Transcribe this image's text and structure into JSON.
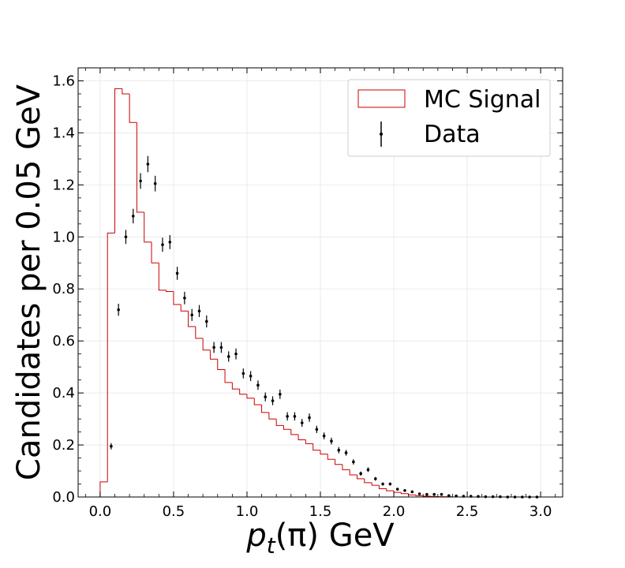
{
  "chart_data": {
    "type": "histogram",
    "title": "",
    "xlabel_main": "p",
    "xlabel_sub": "t",
    "xlabel_rest": "(π) GeV",
    "ylabel": "Candidates per 0.05 GeV",
    "xlim": [
      -0.15,
      3.15
    ],
    "ylim": [
      0.0,
      1.65
    ],
    "xticks": [
      "0.0",
      "0.5",
      "1.0",
      "1.5",
      "2.0",
      "2.5",
      "3.0"
    ],
    "yticks": [
      "0.0",
      "0.2",
      "0.4",
      "0.6",
      "0.8",
      "1.0",
      "1.2",
      "1.4",
      "1.6"
    ],
    "grid": true,
    "legend_position": "top-right",
    "bin_width": 0.05,
    "series": [
      {
        "name": "MC Signal",
        "kind": "step-histogram",
        "color": "#cc0000",
        "bin_edges_start": 0.0,
        "values": [
          0.058,
          1.015,
          1.57,
          1.55,
          1.44,
          1.095,
          0.98,
          0.9,
          0.795,
          0.79,
          0.74,
          0.715,
          0.655,
          0.61,
          0.565,
          0.53,
          0.49,
          0.44,
          0.415,
          0.395,
          0.38,
          0.355,
          0.325,
          0.3,
          0.275,
          0.26,
          0.24,
          0.22,
          0.205,
          0.18,
          0.165,
          0.145,
          0.125,
          0.105,
          0.085,
          0.07,
          0.055,
          0.045,
          0.032,
          0.024,
          0.018,
          0.013,
          0.008,
          0.005,
          0.003,
          0.002,
          0.001,
          0.001,
          0.0,
          0.0,
          0.0,
          0.0,
          0.0,
          0.0,
          0.0,
          0.0,
          0.0,
          0.0,
          0.0,
          0.0
        ]
      },
      {
        "name": "Data",
        "kind": "errorbar",
        "color": "#000000",
        "x": [
          0.075,
          0.125,
          0.175,
          0.225,
          0.275,
          0.325,
          0.375,
          0.425,
          0.475,
          0.525,
          0.575,
          0.625,
          0.675,
          0.725,
          0.775,
          0.825,
          0.875,
          0.925,
          0.975,
          1.025,
          1.075,
          1.125,
          1.175,
          1.225,
          1.275,
          1.325,
          1.375,
          1.425,
          1.475,
          1.525,
          1.575,
          1.625,
          1.675,
          1.725,
          1.775,
          1.825,
          1.875,
          1.925,
          1.975,
          2.025,
          2.075,
          2.125,
          2.175,
          2.225,
          2.275,
          2.325,
          2.375,
          2.425,
          2.475,
          2.525,
          2.575,
          2.625,
          2.675,
          2.725,
          2.775,
          2.825,
          2.875,
          2.925,
          2.975
        ],
        "y": [
          0.195,
          0.72,
          1.0,
          1.08,
          1.215,
          1.28,
          1.205,
          0.97,
          0.98,
          0.86,
          0.765,
          0.7,
          0.715,
          0.675,
          0.575,
          0.575,
          0.54,
          0.55,
          0.475,
          0.465,
          0.43,
          0.385,
          0.37,
          0.395,
          0.31,
          0.31,
          0.285,
          0.305,
          0.26,
          0.235,
          0.215,
          0.18,
          0.17,
          0.135,
          0.09,
          0.105,
          0.07,
          0.05,
          0.05,
          0.03,
          0.025,
          0.02,
          0.012,
          0.01,
          0.01,
          0.01,
          0.005,
          0.004,
          0.003,
          0.003,
          0.002,
          0.001,
          0.001,
          0.001,
          0.0,
          0.0,
          0.0,
          0.0,
          0.0
        ],
        "yerr": [
          0.012,
          0.023,
          0.027,
          0.028,
          0.03,
          0.031,
          0.03,
          0.027,
          0.027,
          0.025,
          0.024,
          0.023,
          0.023,
          0.023,
          0.021,
          0.021,
          0.02,
          0.021,
          0.019,
          0.019,
          0.018,
          0.017,
          0.017,
          0.018,
          0.016,
          0.016,
          0.015,
          0.016,
          0.014,
          0.013,
          0.013,
          0.012,
          0.011,
          0.01,
          0.008,
          0.009,
          0.007,
          0.006,
          0.006,
          0.005,
          0.004,
          0.004,
          0.003,
          0.003,
          0.003,
          0.003,
          0.002,
          0.002,
          0.002,
          0.002,
          0.001,
          0.001,
          0.001,
          0.001,
          0.0,
          0.0,
          0.0,
          0.0,
          0.0
        ]
      }
    ]
  }
}
